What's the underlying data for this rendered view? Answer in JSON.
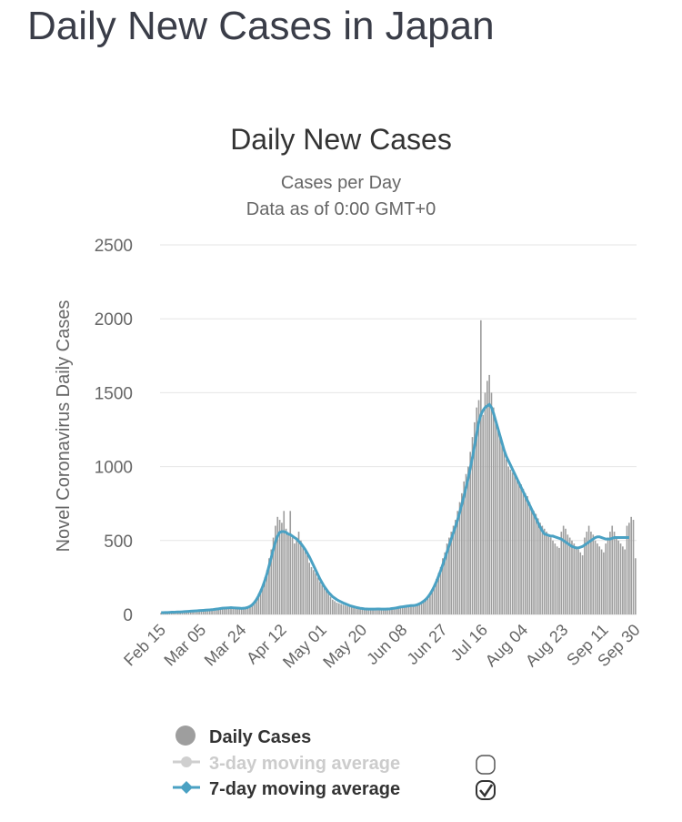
{
  "page_title": "Daily New Cases in Japan",
  "chart_data": {
    "type": "bar",
    "title": "Daily New Cases",
    "subtitle_1": "Cases per Day",
    "subtitle_2": "Data as of 0:00 GMT+0",
    "ylabel": "Novel Coronavirus Daily Cases",
    "ylim": [
      0,
      2500
    ],
    "yticks": [
      "0",
      "500",
      "1000",
      "1500",
      "2000",
      "2500"
    ],
    "xticks": [
      "Feb 15",
      "Mar 05",
      "Mar 24",
      "Apr 12",
      "May 01",
      "May 20",
      "Jun 08",
      "Jun 27",
      "Jul 16",
      "Aug 04",
      "Aug 23",
      "Sep 11",
      "Sep 30"
    ],
    "grid": true,
    "colors": {
      "bars": "#9e9e9e",
      "ma7": "#4aa1c3",
      "ma3": "#cfcfcf",
      "grid": "#e6e6e6"
    },
    "series": [
      {
        "name": "Daily Cases",
        "values": [
          12,
          10,
          14,
          11,
          13,
          16,
          12,
          15,
          18,
          14,
          17,
          19,
          16,
          20,
          22,
          18,
          21,
          24,
          20,
          23,
          26,
          22,
          25,
          28,
          30,
          34,
          38,
          42,
          45,
          48,
          40,
          44,
          50,
          52,
          46,
          42,
          40,
          38,
          36,
          34,
          38,
          44,
          55,
          70,
          90,
          110,
          140,
          170,
          200,
          250,
          300,
          380,
          440,
          520,
          600,
          660,
          640,
          620,
          700,
          580,
          540,
          700,
          520,
          480,
          520,
          560,
          500,
          450,
          430,
          400,
          350,
          320,
          300,
          280,
          250,
          220,
          200,
          180,
          160,
          140,
          120,
          100,
          90,
          80,
          75,
          70,
          65,
          60,
          55,
          52,
          48,
          45,
          42,
          40,
          38,
          36,
          35,
          34,
          33,
          32,
          35,
          38,
          40,
          36,
          34,
          32,
          30,
          34,
          38,
          40,
          42,
          45,
          48,
          50,
          52,
          55,
          58,
          60,
          62,
          60,
          58,
          65,
          70,
          80,
          90,
          100,
          120,
          140,
          170,
          200,
          240,
          280,
          320,
          380,
          420,
          480,
          520,
          560,
          600,
          640,
          700,
          760,
          820,
          900,
          950,
          1000,
          1100,
          1200,
          1300,
          1400,
          1450,
          1990,
          1350,
          1500,
          1580,
          1620,
          1500,
          1400,
          1300,
          1250,
          1200,
          1150,
          1100,
          1050,
          1000,
          980,
          960,
          950,
          930,
          900,
          880,
          850,
          820,
          800,
          760,
          720,
          700,
          680,
          650,
          620,
          600,
          580,
          560,
          540,
          520,
          500,
          480,
          460,
          450,
          560,
          600,
          580,
          540,
          520,
          500,
          480,
          460,
          440,
          420,
          400,
          520,
          560,
          600,
          560,
          540,
          500,
          480,
          460,
          440,
          420,
          480,
          520,
          560,
          600,
          560,
          520,
          500,
          480,
          460,
          440,
          600,
          620,
          660,
          640,
          380
        ],
        "note": "one bar per day from Feb 15"
      },
      {
        "name": "7-day moving average",
        "values": [
          12,
          12,
          13,
          13,
          14,
          15,
          15,
          16,
          17,
          17,
          18,
          19,
          20,
          21,
          22,
          23,
          24,
          25,
          26,
          27,
          28,
          29,
          30,
          31,
          32,
          34,
          36,
          38,
          40,
          42,
          43,
          44,
          45,
          46,
          45,
          44,
          43,
          42,
          41,
          42,
          44,
          48,
          55,
          65,
          80,
          100,
          125,
          155,
          190,
          230,
          275,
          330,
          385,
          440,
          490,
          530,
          555,
          560,
          560,
          555,
          545,
          540,
          530,
          520,
          510,
          495,
          480,
          460,
          440,
          415,
          390,
          360,
          330,
          300,
          270,
          240,
          215,
          190,
          170,
          150,
          135,
          120,
          110,
          100,
          92,
          85,
          78,
          72,
          66,
          60,
          56,
          52,
          48,
          45,
          42,
          40,
          38,
          37,
          36,
          36,
          36,
          36,
          37,
          37,
          36,
          36,
          36,
          37,
          38,
          40,
          42,
          44,
          47,
          50,
          52,
          54,
          56,
          58,
          60,
          60,
          62,
          66,
          72,
          80,
          90,
          102,
          118,
          138,
          162,
          190,
          222,
          258,
          296,
          336,
          378,
          422,
          466,
          510,
          552,
          594,
          640,
          690,
          745,
          800,
          860,
          920,
          990,
          1060,
          1140,
          1220,
          1300,
          1350,
          1380,
          1400,
          1410,
          1420,
          1400,
          1360,
          1310,
          1260,
          1210,
          1160,
          1110,
          1070,
          1040,
          1010,
          980,
          950,
          920,
          890,
          860,
          830,
          800,
          770,
          740,
          710,
          680,
          650,
          620,
          590,
          565,
          545,
          540,
          535,
          530,
          530,
          525,
          520,
          515,
          510,
          500,
          490,
          480,
          470,
          460,
          455,
          450,
          450,
          455,
          460,
          470,
          480,
          490,
          500,
          510,
          520,
          525,
          525,
          520,
          515,
          510,
          510,
          510,
          515,
          520,
          520,
          520,
          520,
          520,
          520,
          520,
          520
        ]
      },
      {
        "name": "3-day moving average",
        "values": []
      }
    ],
    "legend": {
      "position": "bottom",
      "items": [
        "Daily Cases",
        "3-day moving average",
        "7-day moving average"
      ],
      "ma3_checked": false,
      "ma7_checked": true
    }
  }
}
